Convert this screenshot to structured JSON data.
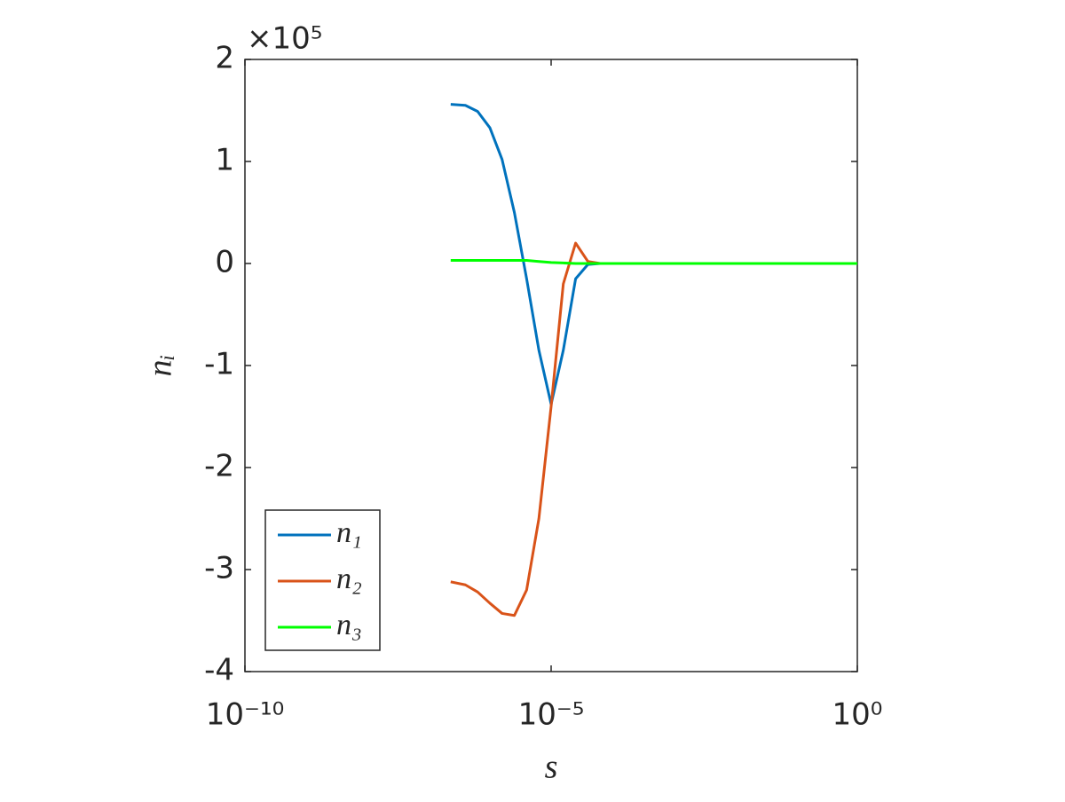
{
  "chart_data": {
    "type": "line",
    "xlabel": "s",
    "ylabel": "nᵢ",
    "y_multiplier": "×10⁵",
    "xscale": "log",
    "x": [
      2.29e-07,
      3.98e-07,
      6.31e-07,
      1e-06,
      1.58e-06,
      2.51e-06,
      3.98e-06,
      6.31e-06,
      1e-05,
      1.58e-05,
      2.51e-05,
      3.98e-05,
      6.31e-05,
      0.0001,
      0.001,
      0.01,
      0.1,
      1
    ],
    "series": [
      {
        "name": "n₁",
        "color": "#0072bd",
        "values": [
          1.56,
          1.55,
          1.49,
          1.33,
          1.02,
          0.5,
          -0.15,
          -0.85,
          -1.38,
          -0.85,
          -0.15,
          -0.01,
          0,
          0,
          null,
          null,
          null,
          null
        ]
      },
      {
        "name": "n₂",
        "color": "#d95319",
        "values": [
          -3.12,
          -3.15,
          -3.22,
          -3.33,
          -3.43,
          -3.45,
          -3.2,
          -2.5,
          -1.4,
          -0.2,
          0.2,
          0.02,
          0,
          0,
          null,
          null,
          null,
          null
        ]
      },
      {
        "name": "n₃",
        "color": "#00ff00",
        "values": [
          0.03,
          0.03,
          0.03,
          0.03,
          0.03,
          0.03,
          0.03,
          0.02,
          0.01,
          0.005,
          0,
          0,
          0,
          0,
          0,
          0,
          0,
          0
        ]
      }
    ],
    "xlim": [
      1e-10,
      1
    ],
    "xticks": [
      {
        "value": 1e-10,
        "label": "10⁻¹⁰"
      },
      {
        "value": 1e-05,
        "label": "10⁻⁵"
      },
      {
        "value": 1,
        "label": "10⁰"
      }
    ],
    "ylim": [
      -4,
      2
    ],
    "yticks": [
      -4,
      -3,
      -2,
      -1,
      0,
      1,
      2
    ],
    "grid": false,
    "legend": "lower left"
  }
}
